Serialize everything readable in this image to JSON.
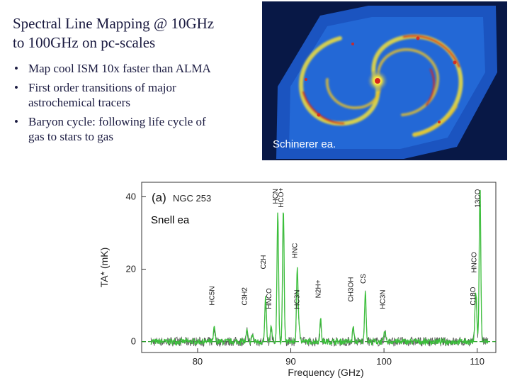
{
  "slide": {
    "title_lines": [
      "Spectral Line Mapping @ 10GHz",
      "to 100GHz on pc-scales"
    ],
    "bullets": [
      {
        "text_lines": [
          "Map cool ISM 10x faster than ALMA"
        ]
      },
      {
        "text_lines": [
          "First order transitions of major",
          "astrochemical tracers"
        ]
      },
      {
        "text_lines": [
          "Baryon cycle: following life cycle of",
          "gas to stars to gas"
        ]
      }
    ],
    "bullet_glyph": "•"
  },
  "galaxy_image": {
    "credit": "Schinerer ea.",
    "colors": {
      "background": "#081846",
      "disk": "#1f5fd6",
      "arms": "#f2e13a",
      "peaks": "#d8251c"
    }
  },
  "spectrum": {
    "credit": "Snell ea",
    "panel_label": "(a)",
    "source_label": "NGC 253",
    "y_axis_label": "TA* (mK)",
    "x_axis_label": "Frequency (GHz)",
    "x_ticks": [
      "80",
      "90",
      "100",
      "110"
    ],
    "y_ticks": [
      "0",
      "20",
      "40"
    ],
    "line_labels": [
      {
        "id": "hc5n-a",
        "text": "HC5N",
        "freq": 81.8,
        "level": 10
      },
      {
        "id": "c3h2",
        "text": "C3H2",
        "freq": 85.3,
        "level": 10
      },
      {
        "id": "hnco-a",
        "text": "HNCO",
        "freq": 87.9,
        "level": 9
      },
      {
        "id": "c2h",
        "text": "C2H",
        "freq": 87.3,
        "level": 20
      },
      {
        "id": "hcn",
        "text": "HCN",
        "freq": 88.6,
        "level": 38
      },
      {
        "id": "hcop",
        "text": "HCO+",
        "freq": 89.2,
        "level": 37
      },
      {
        "id": "hc3n-a",
        "text": "HC3N",
        "freq": 90.9,
        "level": 9
      },
      {
        "id": "hnc",
        "text": "HNC",
        "freq": 90.7,
        "level": 23
      },
      {
        "id": "n2hp",
        "text": "N2H+",
        "freq": 93.2,
        "level": 12
      },
      {
        "id": "ch3oh",
        "text": "CH3OH",
        "freq": 96.7,
        "level": 11
      },
      {
        "id": "cs",
        "text": "CS",
        "freq": 98.0,
        "level": 16
      },
      {
        "id": "hc3n-b",
        "text": "HC3N",
        "freq": 100.1,
        "level": 9
      },
      {
        "id": "c18o",
        "text": "C18O",
        "freq": 109.8,
        "level": 10
      },
      {
        "id": "hnco-b",
        "text": "HNCO",
        "freq": 109.9,
        "level": 19
      },
      {
        "id": "co13",
        "text": "13CO",
        "freq": 110.3,
        "level": 37
      }
    ],
    "colors": {
      "green": "#3cbf3c",
      "gray": "#555555",
      "zero_line": "#1f9e1f"
    }
  },
  "chart_data": {
    "type": "line",
    "title": "",
    "xlabel": "Frequency (GHz)",
    "ylabel": "TA* (mK)",
    "xlim": [
      74,
      112
    ],
    "ylim": [
      -3,
      44
    ],
    "x_ticks": [
      80,
      90,
      100,
      110
    ],
    "y_ticks": [
      0,
      20,
      40
    ],
    "series": [
      {
        "line_freqs": [
          81.8,
          85.3,
          85.9,
          87.3,
          87.9,
          88.6,
          89.2,
          90.7,
          90.9,
          93.2,
          96.7,
          98.0,
          100.1,
          109.8,
          109.9,
          110.3
        ],
        "line_peaks": [
          4,
          3,
          2,
          12,
          4,
          36,
          37,
          20,
          4,
          6,
          4,
          14,
          3,
          7,
          9,
          43
        ]
      }
    ],
    "grid": false
  }
}
